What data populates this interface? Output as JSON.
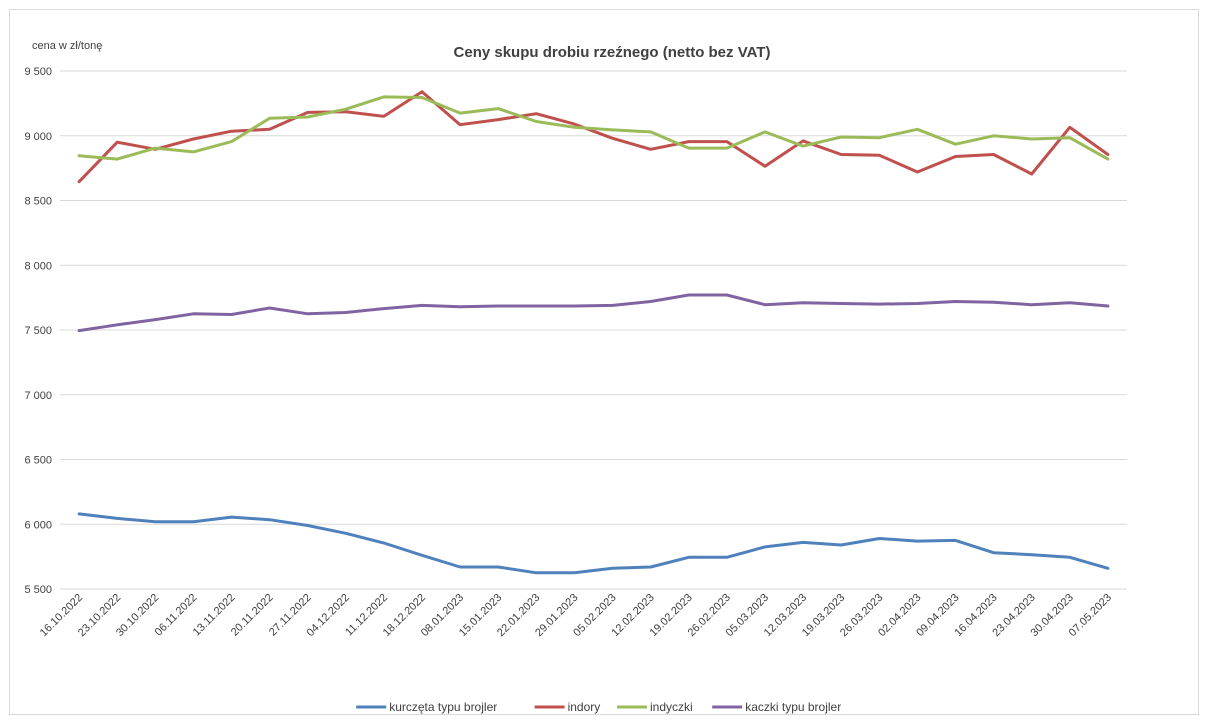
{
  "chart_data": {
    "type": "line",
    "title": "Ceny skupu drobiu rzeźnego (netto bez VAT)",
    "ylabel": "cena w zł/tonę",
    "xlabel": "",
    "ylim": [
      5500,
      9500
    ],
    "yticks": [
      5500,
      6000,
      6500,
      7000,
      7500,
      8000,
      8500,
      9000,
      9500
    ],
    "ytick_labels": [
      "5 500",
      "6 000",
      "6 500",
      "7 000",
      "7 500",
      "8 000",
      "8 500",
      "9 000",
      "9 500"
    ],
    "grid": true,
    "legend_position": "bottom",
    "categories": [
      "16.10.2022",
      "23.10.2022",
      "30.10.2022",
      "06.11.2022",
      "13.11.2022",
      "20.11.2022",
      "27.11.2022",
      "04.12.2022",
      "11.12.2022",
      "18.12.2022",
      "08.01.2023",
      "15.01.2023",
      "22.01.2023",
      "29.01.2023",
      "05.02.2023",
      "12.02.2023",
      "19.02.2023",
      "26.02.2023",
      "05.03.2023",
      "12.03.2023",
      "19.03.2023",
      "26.03.2023",
      "02.04.2023",
      "09.04.2023",
      "16.04.2023",
      "23.04.2023",
      "30.04.2023",
      "07.05.2023"
    ],
    "series": [
      {
        "name": "kurczęta typu brojler",
        "color": "#4f81bd",
        "values": [
          6080,
          6045,
          6020,
          6020,
          6055,
          6035,
          5990,
          5930,
          5855,
          5760,
          5670,
          5670,
          5625,
          5625,
          5660,
          5670,
          5745,
          5745,
          5825,
          5860,
          5840,
          5890,
          5870,
          5875,
          5780,
          5765,
          5745,
          5660
        ]
      },
      {
        "name": "indory",
        "color": "#c0504d",
        "values": [
          8645,
          8950,
          8895,
          8975,
          9035,
          9050,
          9180,
          9185,
          9150,
          9340,
          9085,
          9125,
          9170,
          9090,
          8980,
          8895,
          8955,
          8955,
          8765,
          8960,
          8855,
          8850,
          8720,
          8840,
          8855,
          8705,
          9065,
          8855
        ]
      },
      {
        "name": "indyczki",
        "color": "#9bbb59",
        "values": [
          8845,
          8820,
          8905,
          8875,
          8955,
          9135,
          9145,
          9205,
          9300,
          9295,
          9175,
          9210,
          9110,
          9065,
          9045,
          9030,
          8905,
          8905,
          9030,
          8920,
          8990,
          8985,
          9050,
          8935,
          9000,
          8975,
          8985,
          8820
        ]
      },
      {
        "name": "kaczki typu brojler",
        "color": "#8064a2",
        "values": [
          7495,
          7540,
          7580,
          7625,
          7620,
          7670,
          7625,
          7635,
          7665,
          7690,
          7680,
          7685,
          7685,
          7685,
          7690,
          7720,
          7770,
          7770,
          7695,
          7710,
          7705,
          7700,
          7705,
          7720,
          7715,
          7695,
          7710,
          7685
        ]
      }
    ]
  }
}
